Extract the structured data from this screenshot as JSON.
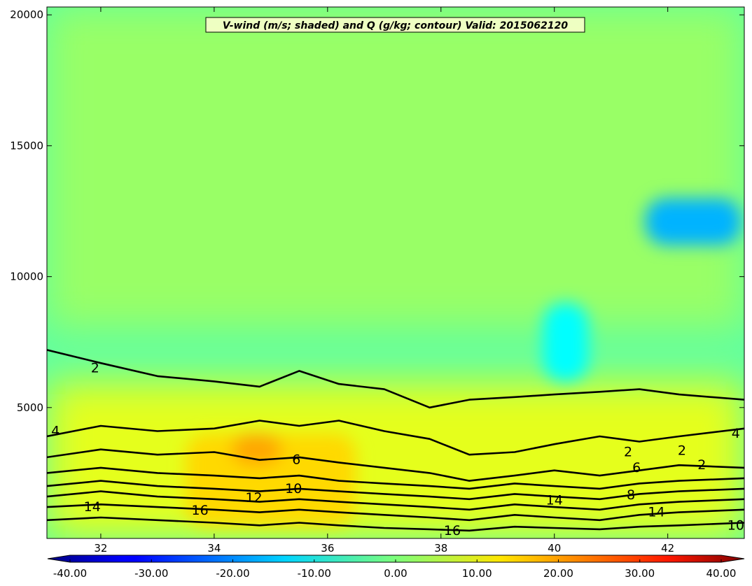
{
  "chart_data": {
    "type": "heatmap",
    "title": "V-wind (m/s; shaded) and Q (g/kg; contour) Valid: 2015062120",
    "xlabel": "",
    "ylabel": "",
    "xlim": [
      31.05,
      43.35
    ],
    "ylim": [
      0,
      20300
    ],
    "x_ticks": [
      32,
      34,
      36,
      38,
      40,
      42
    ],
    "x_tick_labels": [
      "32",
      "34",
      "36",
      "38",
      "40",
      "42"
    ],
    "y_ticks": [
      5000,
      10000,
      15000,
      20000
    ],
    "y_tick_labels": [
      "5000",
      "10000",
      "15000",
      "20000"
    ],
    "colorbar": {
      "orientation": "horizontal",
      "range": [
        -40,
        40
      ],
      "ticks": [
        -40,
        -30,
        -20,
        -10,
        0,
        10,
        20,
        30,
        40
      ],
      "tick_labels": [
        "-40.00",
        "-30.00",
        "-20.00",
        "-10.00",
        "0.00",
        "10.00",
        "20.00",
        "30.00",
        "40.00"
      ],
      "extend": "both",
      "colormap": "jet"
    },
    "shaded_field": {
      "name": "V-wind",
      "units": "m/s",
      "regions": [
        {
          "x": [
            31.05,
            43.35
          ],
          "y": [
            8000,
            20300
          ],
          "value": 2
        },
        {
          "x": [
            31.05,
            43.35
          ],
          "y": [
            0,
            6000
          ],
          "value": 8
        },
        {
          "x": [
            33.5,
            36.5
          ],
          "y": [
            500,
            4000
          ],
          "value": 13
        },
        {
          "x": [
            34.3,
            35.2
          ],
          "y": [
            2800,
            4000
          ],
          "value": 17
        },
        {
          "x": [
            41.6,
            43.3
          ],
          "y": [
            11200,
            13000
          ],
          "value": -16
        },
        {
          "x": [
            39.8,
            40.6
          ],
          "y": [
            6000,
            9000
          ],
          "value": -10
        }
      ]
    },
    "contours": {
      "name": "Q",
      "units": "g/kg",
      "levels": [
        2,
        4,
        6,
        8,
        10,
        12,
        14,
        16
      ],
      "color": "#000000",
      "lines": [
        {
          "level": 2,
          "x": [
            31.05,
            32,
            33,
            34,
            34.8,
            35.5,
            36.2,
            37,
            37.8,
            38.5,
            39.3,
            40,
            40.8,
            41.5,
            42.2,
            43.35
          ],
          "y": [
            7200,
            6700,
            6200,
            6000,
            5800,
            6400,
            5900,
            5700,
            5000,
            5300,
            5400,
            5500,
            5600,
            5700,
            5500,
            5300
          ]
        },
        {
          "level": 4,
          "x": [
            31.05,
            32,
            33,
            34,
            34.8,
            35.5,
            36.2,
            37,
            37.8,
            38.5,
            39.3,
            40,
            40.8,
            41.5,
            42.2,
            43.35
          ],
          "y": [
            3900,
            4300,
            4100,
            4200,
            4500,
            4300,
            4500,
            4100,
            3800,
            3200,
            3300,
            3600,
            3900,
            3700,
            3900,
            4200
          ]
        },
        {
          "level": 6,
          "x": [
            31.05,
            32,
            33,
            34,
            34.8,
            35.5,
            36.2,
            37,
            37.8,
            38.5,
            39.3,
            40,
            40.8,
            41.5,
            42.2,
            43.35
          ],
          "y": [
            3100,
            3400,
            3200,
            3300,
            3000,
            3100,
            2900,
            2700,
            2500,
            2200,
            2400,
            2600,
            2400,
            2600,
            2800,
            2700
          ]
        },
        {
          "level": 8,
          "x": [
            31.05,
            32,
            33,
            34,
            34.8,
            35.5,
            36.2,
            37,
            37.8,
            38.5,
            39.3,
            40,
            40.8,
            41.5,
            42.2,
            43.35
          ],
          "y": [
            2500,
            2700,
            2500,
            2400,
            2300,
            2400,
            2200,
            2100,
            2000,
            1900,
            2100,
            2000,
            1900,
            2100,
            2200,
            2300
          ]
        },
        {
          "level": 10,
          "x": [
            31.05,
            32,
            33,
            34,
            34.8,
            35.5,
            36.2,
            37,
            37.8,
            38.5,
            39.3,
            40,
            40.8,
            41.5,
            42.2,
            43.35
          ],
          "y": [
            2000,
            2200,
            2000,
            1900,
            1800,
            1900,
            1800,
            1700,
            1600,
            1500,
            1700,
            1600,
            1500,
            1700,
            1800,
            1900
          ]
        },
        {
          "level": 12,
          "x": [
            31.05,
            32,
            33,
            34,
            34.8,
            35.5,
            36.2,
            37,
            37.8,
            38.5,
            39.3,
            40,
            40.8,
            41.5,
            42.2,
            43.35
          ],
          "y": [
            1600,
            1800,
            1600,
            1500,
            1400,
            1500,
            1400,
            1300,
            1200,
            1100,
            1300,
            1200,
            1100,
            1300,
            1400,
            1500
          ]
        },
        {
          "level": 14,
          "x": [
            31.05,
            32,
            33,
            34,
            34.8,
            35.5,
            36.2,
            37,
            37.8,
            38.5,
            39.3,
            40,
            40.8,
            41.5,
            42.2,
            43.35
          ],
          "y": [
            1200,
            1300,
            1200,
            1100,
            1000,
            1100,
            1000,
            900,
            800,
            700,
            900,
            800,
            700,
            900,
            1000,
            1100
          ]
        },
        {
          "level": 16,
          "x": [
            31.05,
            32,
            33,
            34,
            34.8,
            35.5,
            36.2,
            37,
            37.8,
            38.5,
            39.3,
            40,
            40.8,
            41.5,
            42.2,
            43.35
          ],
          "y": [
            700,
            800,
            700,
            600,
            500,
            600,
            500,
            400,
            350,
            300,
            450,
            400,
            350,
            450,
            500,
            600
          ]
        }
      ]
    },
    "contour_labels": [
      {
        "text": "2",
        "x": 31.9,
        "y": 6500
      },
      {
        "text": "4",
        "x": 31.2,
        "y": 4100
      },
      {
        "text": "6",
        "x": 35.45,
        "y": 3000
      },
      {
        "text": "10",
        "x": 35.4,
        "y": 1900
      },
      {
        "text": "12",
        "x": 34.7,
        "y": 1550
      },
      {
        "text": "14",
        "x": 31.85,
        "y": 1200
      },
      {
        "text": "16",
        "x": 33.75,
        "y": 1070
      },
      {
        "text": "16",
        "x": 38.2,
        "y": 300
      },
      {
        "text": "2",
        "x": 41.3,
        "y": 3300
      },
      {
        "text": "6",
        "x": 41.45,
        "y": 2700
      },
      {
        "text": "2",
        "x": 42.25,
        "y": 3350
      },
      {
        "text": "2",
        "x": 42.6,
        "y": 2800
      },
      {
        "text": "4",
        "x": 43.2,
        "y": 4000
      },
      {
        "text": "14",
        "x": 40.0,
        "y": 1450
      },
      {
        "text": "8",
        "x": 41.35,
        "y": 1650
      },
      {
        "text": "14",
        "x": 41.8,
        "y": 1000
      },
      {
        "text": "10",
        "x": 43.2,
        "y": 500
      }
    ]
  }
}
